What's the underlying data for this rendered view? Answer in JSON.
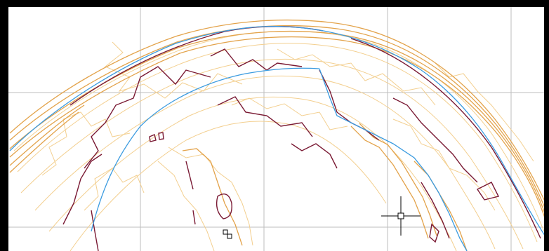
{
  "canvas": {
    "background": "#ffffff",
    "frame_color": "#000000",
    "grid_color": "#bdbdbd",
    "colors": {
      "minor_contour": "#f3cf8f",
      "major_contour": "#e3a34b",
      "index_contour": "#7a1a34",
      "alignment_line": "#3b9be0"
    },
    "layers": [
      "grid-line",
      "minor-contour",
      "major-contour",
      "index-contour",
      "alignment-line",
      "cursor"
    ],
    "cursor": {
      "icon": "crosshair-icon"
    }
  }
}
